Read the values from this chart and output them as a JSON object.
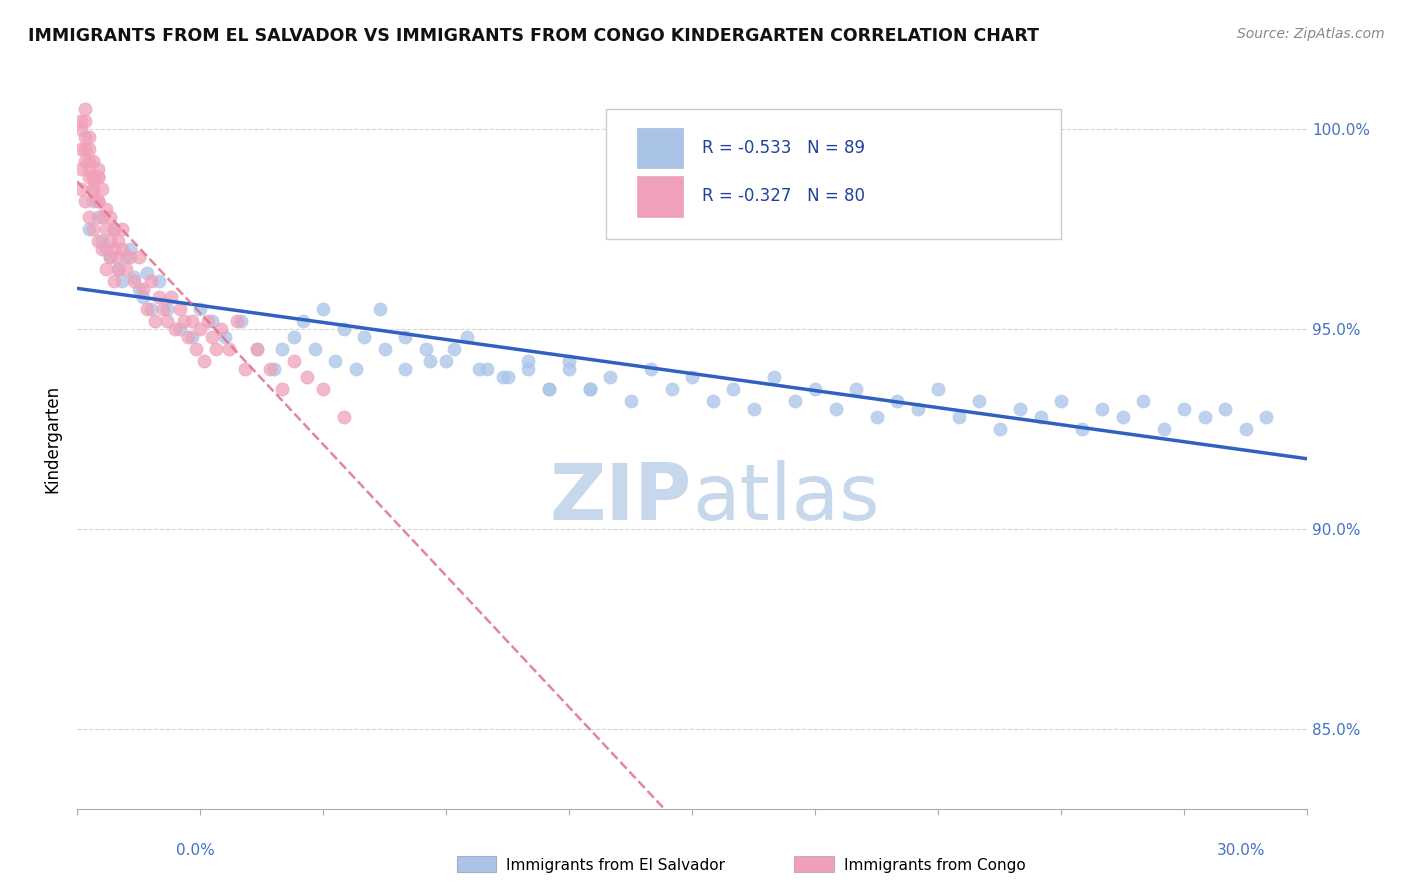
{
  "title": "IMMIGRANTS FROM EL SALVADOR VS IMMIGRANTS FROM CONGO KINDERGARTEN CORRELATION CHART",
  "source_text": "Source: ZipAtlas.com",
  "ylabel": "Kindergarten",
  "xmin": 0.0,
  "xmax": 0.3,
  "ymin": 83.0,
  "ymax": 101.5,
  "yticks": [
    85.0,
    90.0,
    95.0,
    100.0
  ],
  "ytick_labels": [
    "85.0%",
    "90.0%",
    "95.0%",
    "100.0%"
  ],
  "r_salvador": -0.533,
  "n_salvador": 89,
  "r_congo": -0.327,
  "n_congo": 80,
  "color_salvador": "#aac4e8",
  "color_congo": "#f0a0b8",
  "trendline_salvador_color": "#3060c0",
  "trendline_congo_color": "#e07090",
  "watermark_color": "#c8d8ec",
  "legend_r_color": "#2040a0",
  "title_color": "#111111",
  "axis_label_color": "#4472c4",
  "background_color": "#ffffff",
  "el_salvador_x": [
    0.003,
    0.004,
    0.005,
    0.006,
    0.007,
    0.008,
    0.009,
    0.01,
    0.011,
    0.012,
    0.013,
    0.014,
    0.015,
    0.016,
    0.017,
    0.018,
    0.02,
    0.022,
    0.025,
    0.028,
    0.03,
    0.033,
    0.036,
    0.04,
    0.044,
    0.048,
    0.053,
    0.058,
    0.063,
    0.068,
    0.074,
    0.08,
    0.086,
    0.092,
    0.098,
    0.104,
    0.11,
    0.115,
    0.12,
    0.125,
    0.13,
    0.135,
    0.14,
    0.145,
    0.15,
    0.155,
    0.16,
    0.165,
    0.17,
    0.175,
    0.18,
    0.185,
    0.19,
    0.195,
    0.2,
    0.205,
    0.21,
    0.215,
    0.22,
    0.225,
    0.23,
    0.235,
    0.24,
    0.245,
    0.25,
    0.255,
    0.26,
    0.265,
    0.27,
    0.275,
    0.28,
    0.285,
    0.29,
    0.05,
    0.055,
    0.06,
    0.065,
    0.07,
    0.075,
    0.08,
    0.085,
    0.09,
    0.095,
    0.1,
    0.105,
    0.11,
    0.115,
    0.12,
    0.125
  ],
  "el_salvador_y": [
    97.5,
    98.2,
    97.8,
    97.2,
    97.0,
    96.8,
    97.5,
    96.5,
    96.2,
    96.8,
    97.0,
    96.3,
    96.0,
    95.8,
    96.4,
    95.5,
    96.2,
    95.5,
    95.0,
    94.8,
    95.5,
    95.2,
    94.8,
    95.2,
    94.5,
    94.0,
    94.8,
    94.5,
    94.2,
    94.0,
    95.5,
    94.8,
    94.2,
    94.5,
    94.0,
    93.8,
    94.2,
    93.5,
    94.0,
    93.5,
    93.8,
    93.2,
    94.0,
    93.5,
    93.8,
    93.2,
    93.5,
    93.0,
    93.8,
    93.2,
    93.5,
    93.0,
    93.5,
    92.8,
    93.2,
    93.0,
    93.5,
    92.8,
    93.2,
    92.5,
    93.0,
    92.8,
    93.2,
    92.5,
    93.0,
    92.8,
    93.2,
    92.5,
    93.0,
    92.8,
    93.0,
    92.5,
    92.8,
    94.5,
    95.2,
    95.5,
    95.0,
    94.8,
    94.5,
    94.0,
    94.5,
    94.2,
    94.8,
    94.0,
    93.8,
    94.0,
    93.5,
    94.2,
    93.5
  ],
  "congo_x": [
    0.001,
    0.001,
    0.002,
    0.002,
    0.002,
    0.003,
    0.003,
    0.003,
    0.004,
    0.004,
    0.004,
    0.005,
    0.005,
    0.005,
    0.006,
    0.006,
    0.007,
    0.007,
    0.008,
    0.008,
    0.009,
    0.009,
    0.01,
    0.01,
    0.011,
    0.011,
    0.012,
    0.013,
    0.014,
    0.015,
    0.016,
    0.017,
    0.018,
    0.019,
    0.02,
    0.021,
    0.022,
    0.023,
    0.024,
    0.025,
    0.026,
    0.027,
    0.028,
    0.029,
    0.03,
    0.031,
    0.032,
    0.033,
    0.034,
    0.035,
    0.037,
    0.039,
    0.041,
    0.044,
    0.047,
    0.05,
    0.053,
    0.056,
    0.06,
    0.065,
    0.001,
    0.001,
    0.002,
    0.002,
    0.003,
    0.003,
    0.004,
    0.004,
    0.005,
    0.005,
    0.001,
    0.002,
    0.003,
    0.004,
    0.005,
    0.006,
    0.007,
    0.008,
    0.009,
    0.01
  ],
  "congo_y": [
    99.5,
    100.2,
    99.2,
    99.8,
    100.5,
    98.8,
    99.2,
    99.8,
    98.5,
    98.8,
    99.2,
    98.2,
    98.8,
    99.0,
    97.8,
    98.5,
    97.5,
    98.0,
    97.2,
    97.8,
    97.0,
    97.5,
    96.8,
    97.2,
    97.0,
    97.5,
    96.5,
    96.8,
    96.2,
    96.8,
    96.0,
    95.5,
    96.2,
    95.2,
    95.8,
    95.5,
    95.2,
    95.8,
    95.0,
    95.5,
    95.2,
    94.8,
    95.2,
    94.5,
    95.0,
    94.2,
    95.2,
    94.8,
    94.5,
    95.0,
    94.5,
    95.2,
    94.0,
    94.5,
    94.0,
    93.5,
    94.2,
    93.8,
    93.5,
    92.8,
    99.0,
    100.0,
    99.5,
    100.2,
    99.0,
    99.5,
    98.5,
    98.8,
    98.2,
    98.8,
    98.5,
    98.2,
    97.8,
    97.5,
    97.2,
    97.0,
    96.5,
    96.8,
    96.2,
    96.5
  ]
}
